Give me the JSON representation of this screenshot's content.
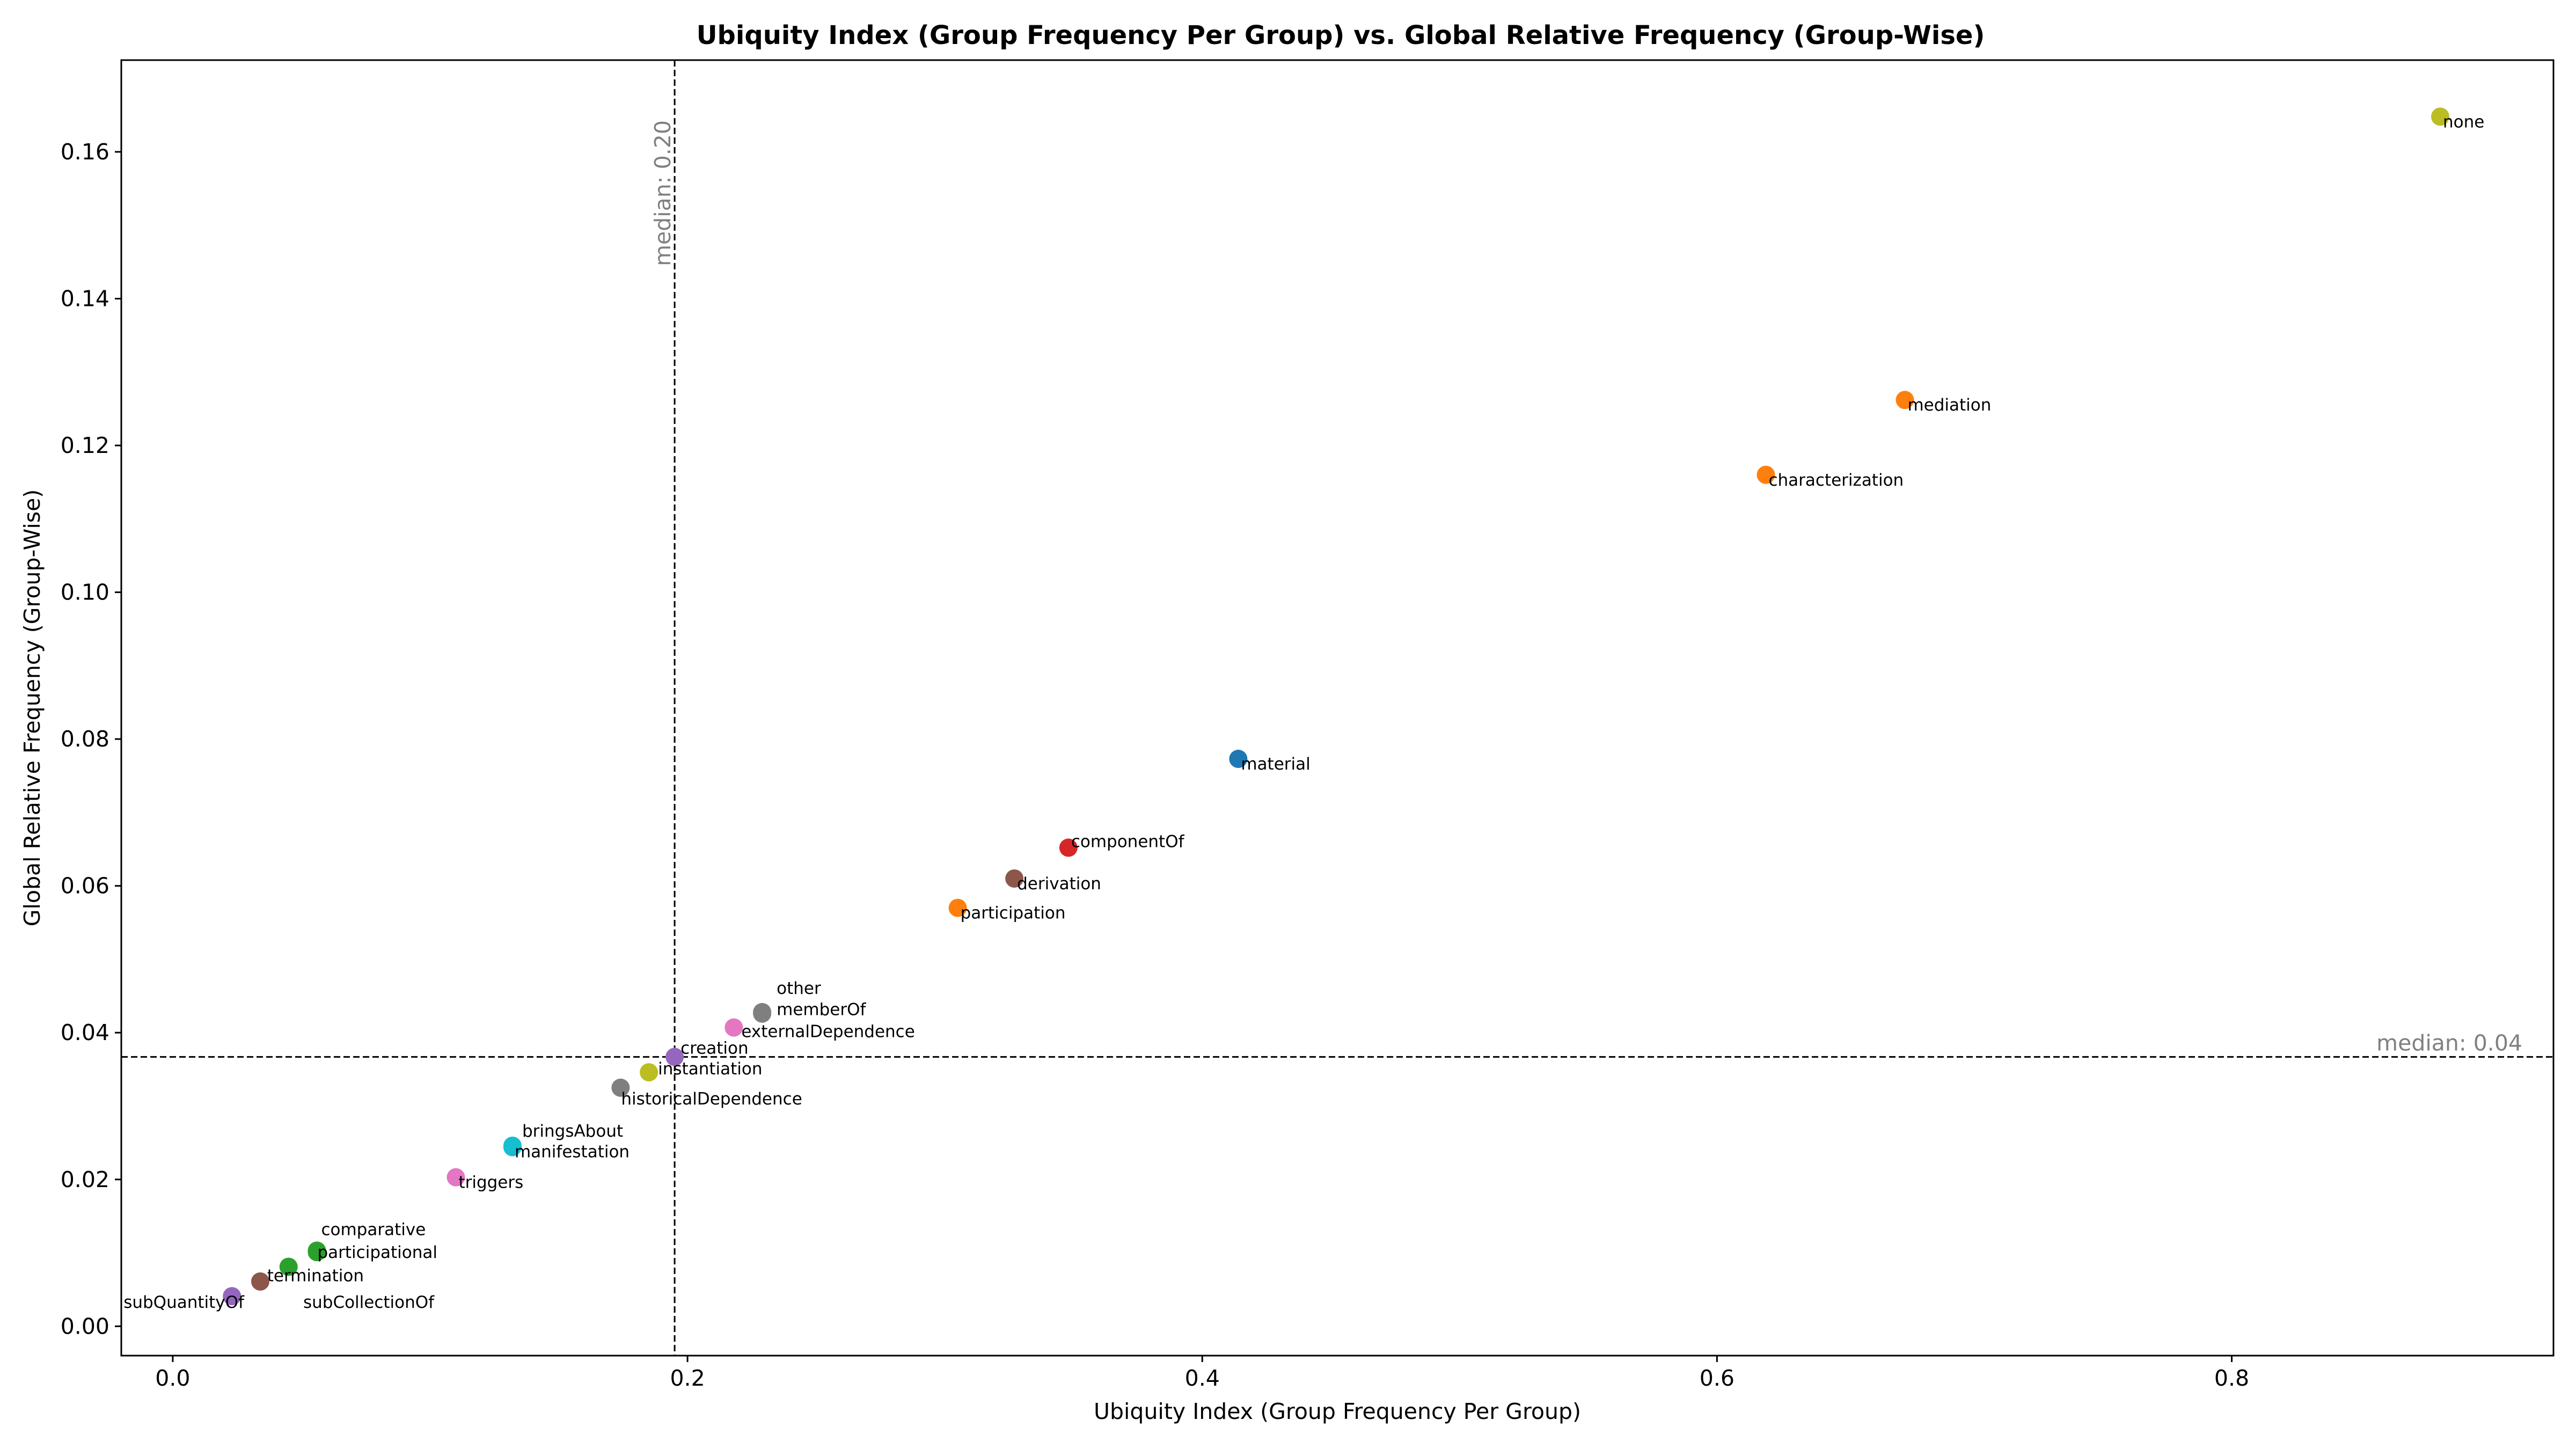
{
  "chart_data": {
    "type": "scatter",
    "title": "Ubiquity Index (Group Frequency Per Group) vs. Global Relative Frequency (Group-Wise)",
    "xlabel": "Ubiquity Index (Group Frequency Per Group)",
    "ylabel": "Global Relative Frequency (Group-Wise)",
    "xlim": [
      -0.02,
      0.925
    ],
    "ylim": [
      -0.004,
      0.1725
    ],
    "xticks": [
      0.0,
      0.2,
      0.4,
      0.6,
      0.8
    ],
    "xtick_labels": [
      "0.0",
      "0.2",
      "0.4",
      "0.6",
      "0.8"
    ],
    "yticks": [
      0.0,
      0.02,
      0.04,
      0.06,
      0.08,
      0.1,
      0.12,
      0.14,
      0.16
    ],
    "ytick_labels": [
      "0.00",
      "0.02",
      "0.04",
      "0.06",
      "0.08",
      "0.10",
      "0.12",
      "0.14",
      "0.16"
    ],
    "grid": false,
    "median_x": {
      "value": 0.195,
      "label": "median: 0.20"
    },
    "median_y": {
      "value": 0.0367,
      "label": "median: 0.04"
    },
    "points": [
      {
        "name": "none",
        "x": 0.881,
        "y": 0.1648,
        "color": "#bcbd22"
      },
      {
        "name": "mediation",
        "x": 0.673,
        "y": 0.1262,
        "color": "#ff7f0e"
      },
      {
        "name": "characterization",
        "x": 0.619,
        "y": 0.116,
        "color": "#ff7f0e"
      },
      {
        "name": "material",
        "x": 0.414,
        "y": 0.0773,
        "color": "#1f77b4"
      },
      {
        "name": "componentOf",
        "x": 0.348,
        "y": 0.0652,
        "color": "#d62728"
      },
      {
        "name": "derivation",
        "x": 0.327,
        "y": 0.061,
        "color": "#8c564b"
      },
      {
        "name": "participation",
        "x": 0.305,
        "y": 0.057,
        "color": "#ff7f0e"
      },
      {
        "name": "other",
        "x": 0.229,
        "y": 0.0428,
        "color": "#7f7f7f"
      },
      {
        "name": "memberOf",
        "x": 0.229,
        "y": 0.0426,
        "color": "#7f7f7f"
      },
      {
        "name": "externalDependence",
        "x": 0.218,
        "y": 0.0407,
        "color": "#e377c2"
      },
      {
        "name": "creation",
        "x": 0.195,
        "y": 0.0367,
        "color": "#9467bd"
      },
      {
        "name": "instantiation",
        "x": 0.185,
        "y": 0.0346,
        "color": "#bcbd22"
      },
      {
        "name": "historicalDependence",
        "x": 0.174,
        "y": 0.0325,
        "color": "#7f7f7f"
      },
      {
        "name": "bringsAbout",
        "x": 0.132,
        "y": 0.0246,
        "color": "#17becf"
      },
      {
        "name": "manifestation",
        "x": 0.132,
        "y": 0.0244,
        "color": "#17becf"
      },
      {
        "name": "triggers",
        "x": 0.11,
        "y": 0.0203,
        "color": "#e377c2"
      },
      {
        "name": "comparative",
        "x": 0.056,
        "y": 0.0103,
        "color": "#2ca02c"
      },
      {
        "name": "participational",
        "x": 0.056,
        "y": 0.0101,
        "color": "#2ca02c"
      },
      {
        "name": "termination",
        "x": 0.045,
        "y": 0.0081,
        "color": "#2ca02c"
      },
      {
        "name": "subCollectionOf",
        "x": 0.034,
        "y": 0.0061,
        "color": "#8c564b"
      },
      {
        "name": "subQuantityOf",
        "x": 0.023,
        "y": 0.0041,
        "color": "#9467bd"
      }
    ]
  }
}
